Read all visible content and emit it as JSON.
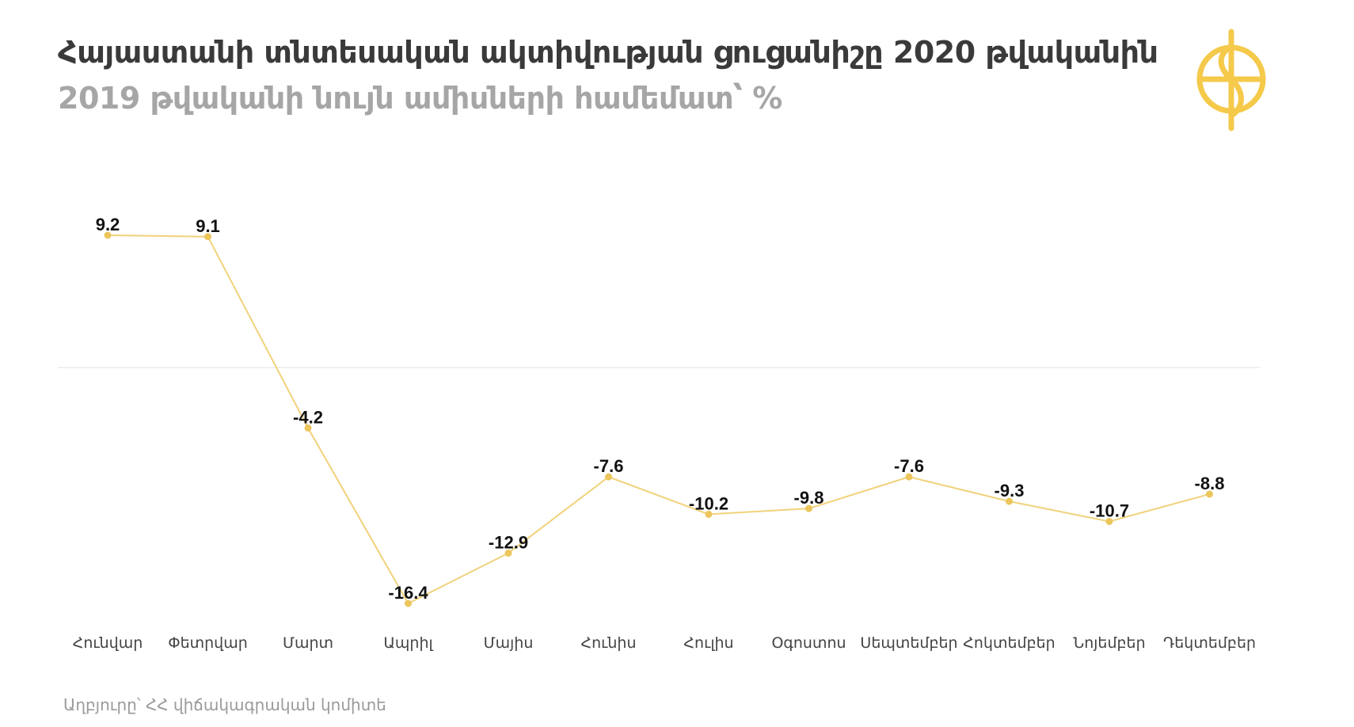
{
  "title": "Հայաստանի տնտեսական ակտիվության ցուցանիշը 2020 թվականին",
  "subtitle": "2019 թվականի նույն ամիսների համեմատ՝ %",
  "source": "Աղբյուրը՝ ՀՀ վիճակագրական կոմիտե",
  "logo": {
    "icon": "brand-logo-icon",
    "color": "#f5c94a"
  },
  "chart_data": {
    "type": "line",
    "categories": [
      "Հունվար",
      "Փետրվար",
      "Մարտ",
      "Ապրիլ",
      "Մայիս",
      "Հունիս",
      "Հուլիս",
      "Օգոստոս",
      "Սեպտեմբեր",
      "Հոկտեմբեր",
      "Նոյեմբեր",
      "Դեկտեմբեր"
    ],
    "values": [
      9.2,
      9.1,
      -4.2,
      -16.4,
      -12.9,
      -7.6,
      -10.2,
      -9.8,
      -7.6,
      -9.3,
      -10.7,
      -8.8
    ],
    "labels": [
      "9.2",
      "9.1",
      "-4.2",
      "-16.4",
      "-12.9",
      "-7.6",
      "-10.2",
      "-9.8",
      "-7.6",
      "-9.3",
      "-10.7",
      "-8.8"
    ],
    "ylim": [
      -17,
      10
    ],
    "zero_line": true,
    "grid": false,
    "line_color": "#f0d27a",
    "point_color": "#ecc65c",
    "zero_line_color": "#e3e3e3"
  }
}
